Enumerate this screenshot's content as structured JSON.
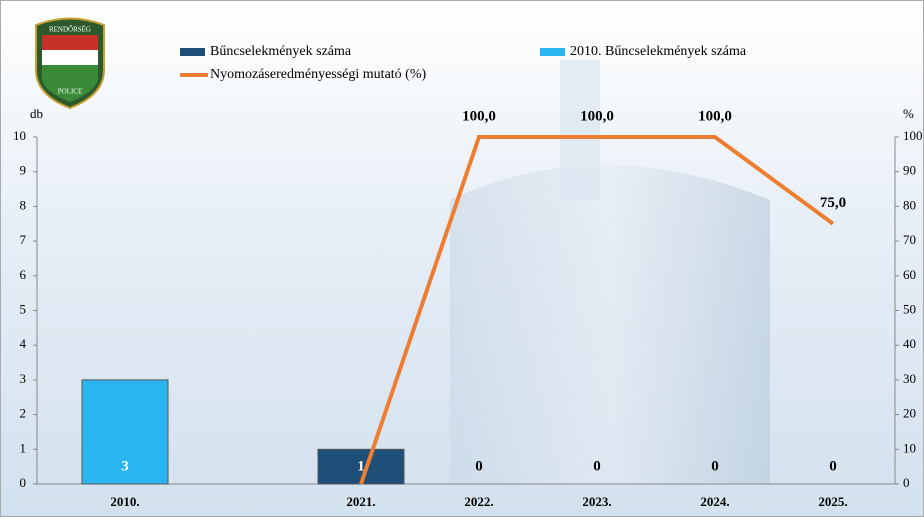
{
  "logo": {
    "top": "RENDŐRSÉG",
    "bottom": "POLICE"
  },
  "chart_data": {
    "type": "bar-line",
    "y_label": "db",
    "y2_label": "%",
    "categories": [
      "2010.",
      null,
      "2021.",
      "2022.",
      "2023.",
      "2024.",
      "2025."
    ],
    "series": [
      {
        "name": "Bűncselekmények száma",
        "type": "bar",
        "color": "#1f4e79",
        "values": [
          null,
          null,
          1,
          0,
          0,
          0,
          0
        ]
      },
      {
        "name": "2010. Bűncselekmények száma",
        "type": "bar",
        "color": "#29b6f0",
        "values": [
          3,
          null,
          null,
          null,
          null,
          null,
          null
        ]
      },
      {
        "name": "Nyomozáseredményességi mutató (%)",
        "type": "line",
        "axis": "y2",
        "color": "#ed7d31",
        "values": [
          null,
          null,
          0,
          100,
          100,
          100,
          75
        ],
        "value_labels": [
          null,
          null,
          null,
          "100,0",
          "100,0",
          "100,0",
          "75,0"
        ]
      }
    ],
    "ylim": [
      0,
      10
    ],
    "yticks": [
      0,
      1,
      2,
      3,
      4,
      5,
      6,
      7,
      8,
      9,
      10
    ],
    "y2lim": [
      0,
      100
    ],
    "y2ticks": [
      0,
      10,
      20,
      30,
      40,
      50,
      60,
      70,
      80,
      90,
      100
    ]
  }
}
